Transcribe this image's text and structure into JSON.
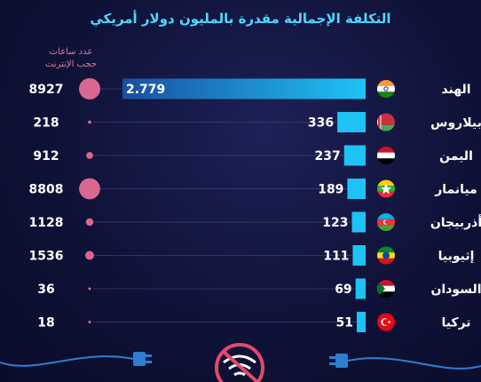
{
  "title": "التكلفة الإجمالية مقدرة بالمليون دولار أمريكي",
  "hours_header": [
    "عدد ساعات",
    "حجب الإنترنت"
  ],
  "colors": {
    "bar": "#1ec3f5",
    "bubble": "#d96890",
    "title": "#4fd8ff",
    "hours_header": "#e37aa0"
  },
  "chart_data": {
    "type": "bar",
    "title": "التكلفة الإجمالية مقدرة بالمليون دولار أمريكي",
    "orientation": "horizontal",
    "categories": [
      "الهند",
      "بيلاروس",
      "اليمن",
      "ميانمار",
      "أذربيجان",
      "إثيوبيا",
      "السودان",
      "تركيا"
    ],
    "value_labels": [
      "2.779",
      "336",
      "237",
      "189",
      "123",
      "111",
      "69",
      "51"
    ],
    "series": [
      {
        "name": "التكلفة الإجمالية مقدرة بالمليون دولار أمريكي",
        "values": [
          2779,
          336,
          237,
          189,
          123,
          111,
          69,
          51
        ]
      },
      {
        "name": "عدد ساعات حجب الإنترنت",
        "values": [
          8927,
          218,
          912,
          8808,
          1128,
          1536,
          36,
          18
        ]
      }
    ],
    "flags": [
      "india-flag-icon",
      "belarus-flag-icon",
      "yemen-flag-icon",
      "myanmar-flag-icon",
      "azerbaijan-flag-icon",
      "ethiopia-flag-icon",
      "sudan-flag-icon",
      "turkey-flag-icon"
    ],
    "legend": "none",
    "grid": true
  },
  "footer_icons": [
    "unplugged-cable-icon",
    "no-wifi-icon",
    "unplugged-cable-icon"
  ]
}
